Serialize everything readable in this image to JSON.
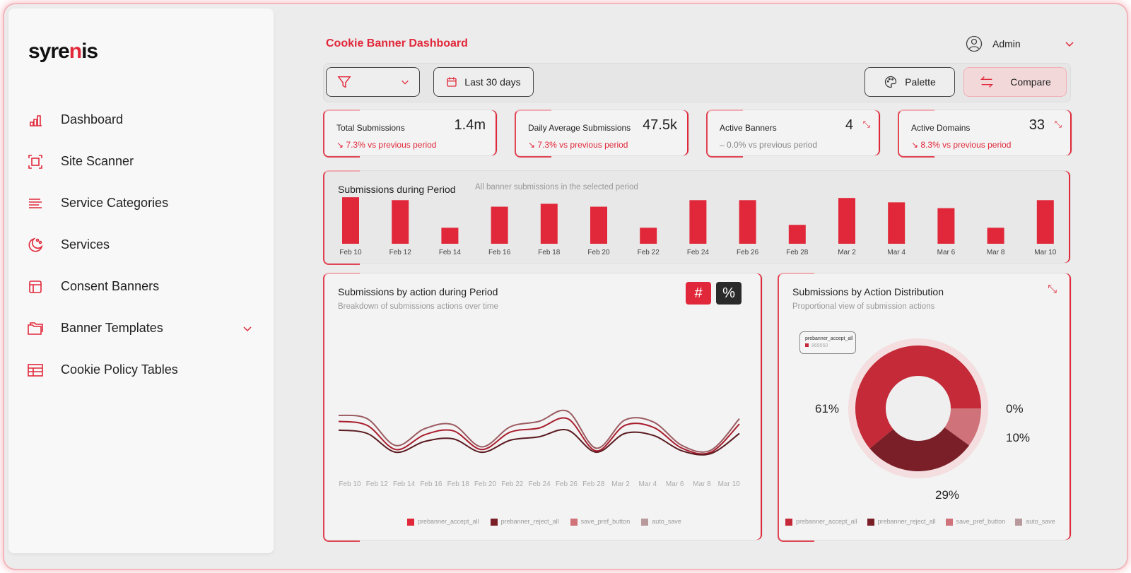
{
  "colors": {
    "accent": "#e1283a",
    "accept": "#c42a38",
    "reject": "#7a1f27",
    "save_pref": "#d0727a",
    "auto_save": "#b89a9d"
  },
  "brand": {
    "logo": "syrenis"
  },
  "sidebar": {
    "items": [
      {
        "label": "Dashboard",
        "icon": "bar-chart-icon"
      },
      {
        "label": "Site Scanner",
        "icon": "scan-icon"
      },
      {
        "label": "Service Categories",
        "icon": "lines-icon"
      },
      {
        "label": "Services",
        "icon": "cookie-icon"
      },
      {
        "label": "Consent Banners",
        "icon": "layout-icon"
      },
      {
        "label": "Banner Templates",
        "icon": "folder-icon",
        "expandable": true
      },
      {
        "label": "Cookie Policy Tables",
        "icon": "table-icon"
      }
    ]
  },
  "header": {
    "title": "Cookie Banner Dashboard",
    "user": "Admin"
  },
  "toolbar": {
    "date_range": "Last 30 days",
    "palette": "Palette",
    "compare": "Compare"
  },
  "stats": [
    {
      "label": "Total Submissions",
      "value": "1.4m",
      "change": "↘ 7.3% vs previous period"
    },
    {
      "label": "Daily Average Submissions",
      "value": "47.5k",
      "change": "↘ 7.3% vs previous period"
    },
    {
      "label": "Active Banners",
      "value": "4",
      "change": "– 0.0% vs previous period"
    },
    {
      "label": "Active Domains",
      "value": "33",
      "change": "↘ 8.3% vs previous period"
    }
  ],
  "chart_data": [
    {
      "type": "bar",
      "title": "Submissions during Period",
      "subtitle": "All banner submissions in the selected period",
      "categories": [
        "Feb 10",
        "Feb 12",
        "Feb 14",
        "Feb 16",
        "Feb 18",
        "Feb 20",
        "Feb 22",
        "Feb 24",
        "Feb 26",
        "Feb 28",
        "Mar 2",
        "Mar 4",
        "Mar 6",
        "Mar 8",
        "Mar 10"
      ],
      "values": [
        64,
        60,
        22,
        51,
        55,
        51,
        22,
        60,
        60,
        26,
        63,
        57,
        49,
        22,
        60
      ],
      "grid": false
    },
    {
      "type": "line",
      "title": "Submissions by action during Period",
      "subtitle": "Breakdown of submissions actions over time",
      "toggles": [
        "#",
        "%"
      ],
      "categories": [
        "Feb 10",
        "Feb 12",
        "Feb 14",
        "Feb 16",
        "Feb 18",
        "Feb 20",
        "Feb 22",
        "Feb 24",
        "Feb 26",
        "Feb 28",
        "Mar 2",
        "Mar 4",
        "Mar 6",
        "Mar 8",
        "Mar 10"
      ],
      "series": [
        {
          "name": "auto_save",
          "values": [
            77,
            72,
            32,
            57,
            63,
            30,
            60,
            68,
            83,
            28,
            70,
            67,
            32,
            25,
            72
          ]
        },
        {
          "name": "prebanner_accept_all",
          "values": [
            68,
            62,
            26,
            48,
            54,
            26,
            52,
            58,
            72,
            24,
            62,
            59,
            28,
            22,
            64
          ]
        },
        {
          "name": "prebanner_reject_all",
          "values": [
            55,
            50,
            22,
            38,
            42,
            22,
            40,
            45,
            55,
            22,
            50,
            47,
            24,
            20,
            50
          ]
        }
      ],
      "legend": [
        "prebanner_accept_all",
        "prebanner_reject_all",
        "save_pref_button",
        "auto_save"
      ],
      "legend_position": "bottom",
      "grid": false
    },
    {
      "type": "pie",
      "title": "Submissions by Action Distribution",
      "subtitle": "Proportional view of submission actions",
      "slices": [
        {
          "name": "prebanner_accept_all",
          "value": 61,
          "label": "61%"
        },
        {
          "name": "prebanner_reject_all",
          "value": 29,
          "label": "29%"
        },
        {
          "name": "save_pref_button",
          "value": 10,
          "label": "10%"
        },
        {
          "name": "auto_save",
          "value": 0,
          "label": "0%"
        }
      ],
      "tooltip": {
        "name": "prebanner_accept_all",
        "value": "869550"
      },
      "legend_position": "bottom"
    }
  ]
}
